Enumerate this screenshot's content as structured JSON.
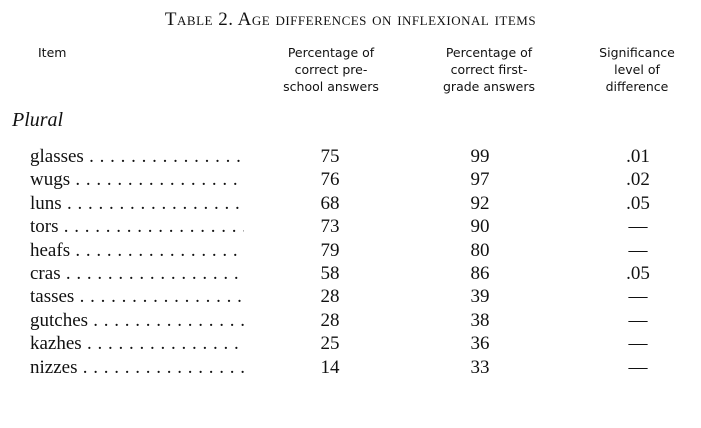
{
  "title": "Table 2. Age differences on inflexional items",
  "headers": {
    "item": "Item",
    "preschool": "Percentage of\ncorrect pre-\nschool answers",
    "first_grade": "Percentage of\ncorrect first-\ngrade answers",
    "significance": "Significance\nlevel of\ndifference"
  },
  "section": "Plural",
  "rows": [
    {
      "item": "glasses",
      "preschool": "75",
      "first_grade": "99",
      "significance": ".01"
    },
    {
      "item": "wugs",
      "preschool": "76",
      "first_grade": "97",
      "significance": ".02"
    },
    {
      "item": "luns",
      "preschool": "68",
      "first_grade": "92",
      "significance": ".05"
    },
    {
      "item": "tors",
      "preschool": "73",
      "first_grade": "90",
      "significance": "—"
    },
    {
      "item": "heafs",
      "preschool": "79",
      "first_grade": "80",
      "significance": "—"
    },
    {
      "item": "cras",
      "preschool": "58",
      "first_grade": "86",
      "significance": ".05"
    },
    {
      "item": "tasses",
      "preschool": "28",
      "first_grade": "39",
      "significance": "—"
    },
    {
      "item": "gutches",
      "preschool": "28",
      "first_grade": "38",
      "significance": "—"
    },
    {
      "item": "kazhes",
      "preschool": "25",
      "first_grade": "36",
      "significance": "—"
    },
    {
      "item": "nizzes",
      "preschool": "14",
      "first_grade": "33",
      "significance": "—"
    }
  ]
}
